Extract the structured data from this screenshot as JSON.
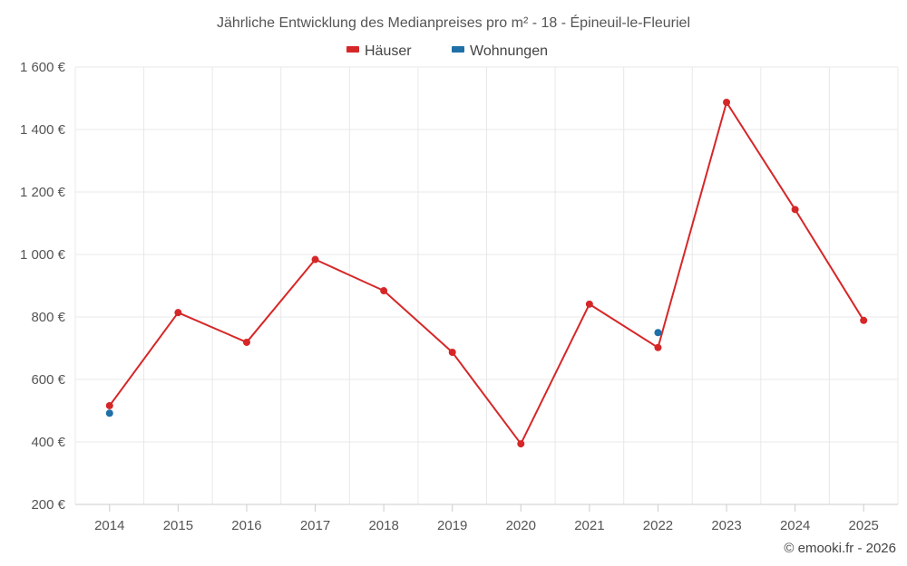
{
  "chart_data": {
    "type": "line",
    "title": "Jährliche Entwicklung des Medianpreises pro m² - 18 - Épineuil-le-Fleuriel",
    "x": [
      "2014",
      "2015",
      "2016",
      "2017",
      "2018",
      "2019",
      "2020",
      "2021",
      "2022",
      "2023",
      "2024",
      "2025"
    ],
    "ylim": [
      200,
      1600
    ],
    "yticks": [
      200,
      400,
      600,
      800,
      1000,
      1200,
      1400,
      1600
    ],
    "ytick_labels": [
      "200 €",
      "400 €",
      "600 €",
      "800 €",
      "1 000 €",
      "1 200 €",
      "1 400 €",
      "1 600 €"
    ],
    "grid": true,
    "legend_position": "top-center",
    "series": [
      {
        "name": "Häuser",
        "color": "#d62728",
        "line": true,
        "values": [
          516,
          814,
          719,
          984,
          884,
          687,
          394,
          841,
          702,
          1487,
          1144,
          789
        ]
      },
      {
        "name": "Wohnungen",
        "color": "#1f6fa8",
        "line": false,
        "values": [
          492,
          null,
          null,
          null,
          null,
          null,
          null,
          null,
          750,
          null,
          null,
          null
        ]
      }
    ]
  },
  "credit": "© emooki.fr - 2026"
}
